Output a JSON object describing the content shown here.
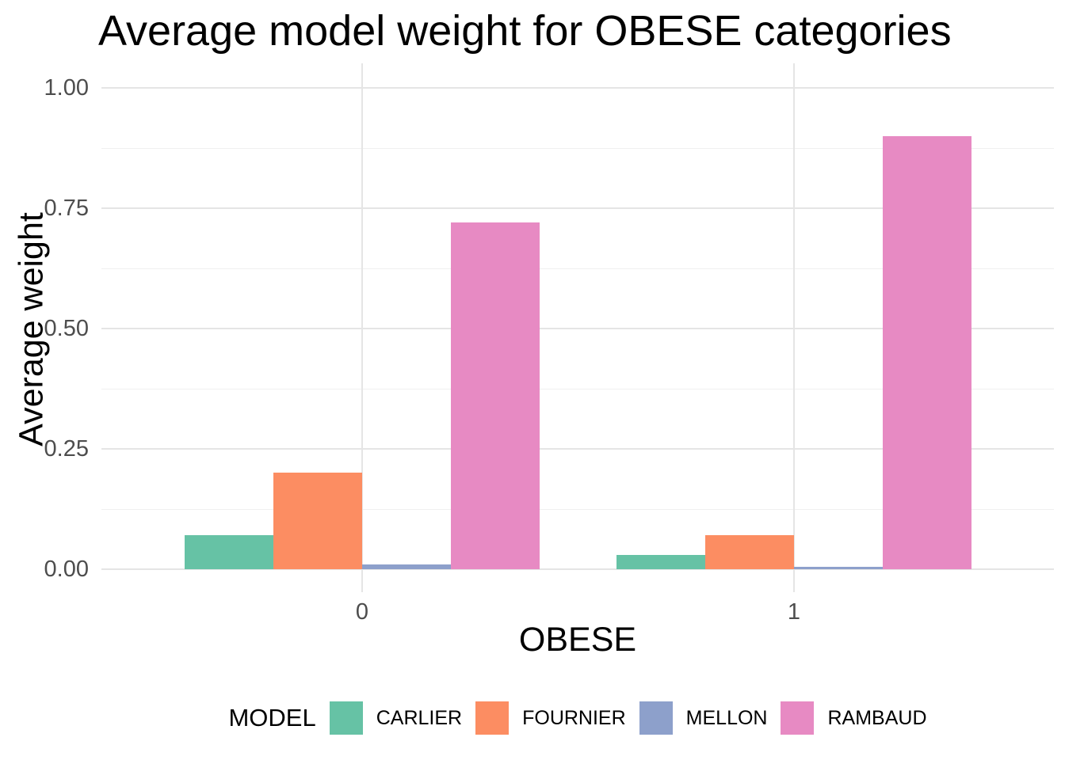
{
  "chart_data": {
    "type": "bar",
    "title": "Average model weight for OBESE categories",
    "xlabel": "OBESE",
    "ylabel": "Average weight",
    "categories": [
      "0",
      "1"
    ],
    "series": [
      {
        "name": "CARLIER",
        "color": "#66C2A5",
        "values": [
          0.07,
          0.03
        ]
      },
      {
        "name": "FOURNIER",
        "color": "#FC8D62",
        "values": [
          0.2,
          0.07
        ]
      },
      {
        "name": "MELLON",
        "color": "#8DA0CB",
        "values": [
          0.01,
          0.005
        ]
      },
      {
        "name": "RAMBAUD",
        "color": "#E78AC3",
        "values": [
          0.72,
          0.9
        ]
      }
    ],
    "ylim": [
      0,
      1
    ],
    "y_ticks": [
      {
        "label": "0.00",
        "value": 0.0
      },
      {
        "label": "0.25",
        "value": 0.25
      },
      {
        "label": "0.50",
        "value": 0.5
      },
      {
        "label": "0.75",
        "value": 0.75
      },
      {
        "label": "1.00",
        "value": 1.0
      }
    ],
    "y_minor_ticks": [
      0.125,
      0.375,
      0.625,
      0.875
    ],
    "legend_title": "MODEL",
    "legend_position": "bottom",
    "grid": true,
    "bar_layout": "grouped",
    "background_color": "#FFFFFF",
    "grid_major_color": "#E5E5E5",
    "grid_minor_color": "#F0F0F0",
    "tick_label_color": "#4D4D4D",
    "text_color": "#000000"
  }
}
